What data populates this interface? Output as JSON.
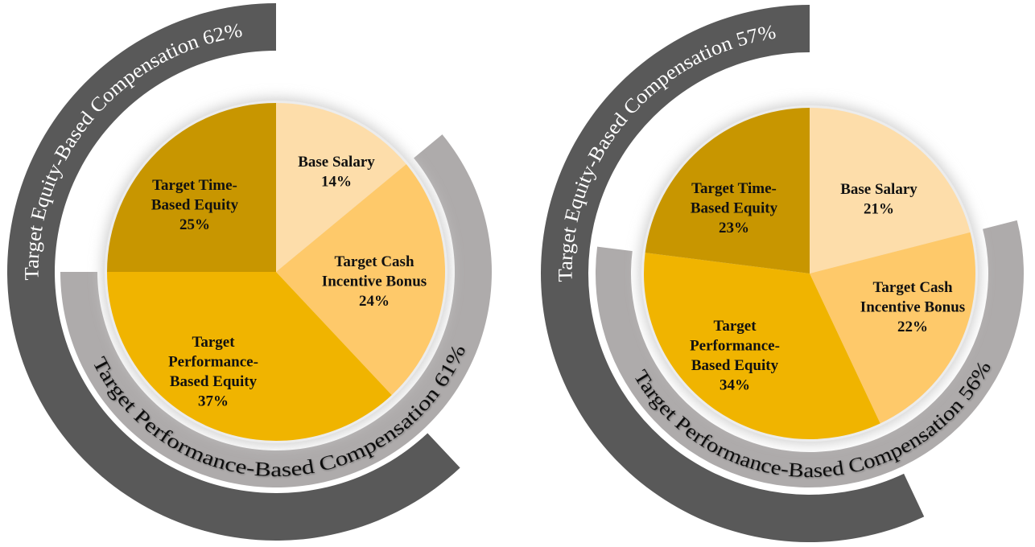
{
  "chart_data": [
    {
      "type": "pie",
      "slices": [
        {
          "label_lines": [
            "Base Salary"
          ],
          "value": 14,
          "value_label": "14%",
          "color": "#FDDDAA"
        },
        {
          "label_lines": [
            "Target Cash",
            "Incentive Bonus"
          ],
          "value": 24,
          "value_label": "24%",
          "color": "#FEC96A"
        },
        {
          "label_lines": [
            "Target",
            "Performance-",
            "Based Equity"
          ],
          "value": 37,
          "value_label": "37%",
          "color": "#F0B400"
        },
        {
          "label_lines": [
            "Target Time-",
            "Based Equity"
          ],
          "value": 25,
          "value_label": "25%",
          "color": "#C89600"
        }
      ],
      "arcs": [
        {
          "label": "Target Equity-Based Compensation 62%",
          "value": 62,
          "covers": [
            "Target Performance-Based Equity",
            "Target Time-Based Equity"
          ],
          "color": "#595959"
        },
        {
          "label": "Target Performance-Based Compensation 61%",
          "value": 61,
          "covers": [
            "Target Cash Incentive Bonus",
            "Target Performance-Based Equity"
          ],
          "color": "#AEABAB"
        }
      ]
    },
    {
      "type": "pie",
      "slices": [
        {
          "label_lines": [
            "Base Salary"
          ],
          "value": 21,
          "value_label": "21%",
          "color": "#FDDDAA"
        },
        {
          "label_lines": [
            "Target Cash",
            "Incentive Bonus"
          ],
          "value": 22,
          "value_label": "22%",
          "color": "#FEC96A"
        },
        {
          "label_lines": [
            "Target",
            "Performance-",
            "Based Equity"
          ],
          "value": 34,
          "value_label": "34%",
          "color": "#F0B400"
        },
        {
          "label_lines": [
            "Target Time-",
            "Based Equity"
          ],
          "value": 23,
          "value_label": "23%",
          "color": "#C89600"
        }
      ],
      "arcs": [
        {
          "label": "Target Equity-Based Compensation 57%",
          "value": 57,
          "covers": [
            "Target Performance-Based Equity",
            "Target Time-Based Equity"
          ],
          "color": "#595959"
        },
        {
          "label": "Target Performance-Based Compensation 56%",
          "value": 56,
          "covers": [
            "Target Cash Incentive Bonus",
            "Target Performance-Based Equity"
          ],
          "color": "#AEABAB"
        }
      ]
    }
  ]
}
